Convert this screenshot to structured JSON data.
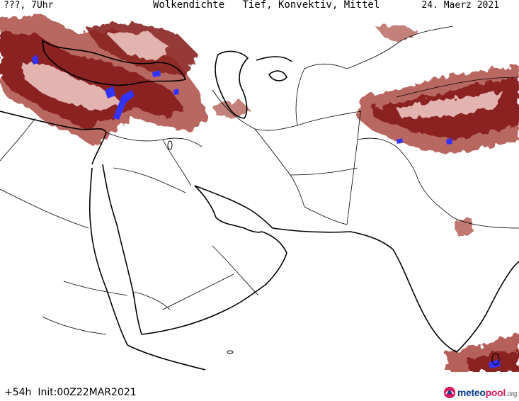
{
  "header": {
    "left": "???, 7Uhr",
    "center": "Wolkendichte   Tief, Konvektiv, Mittel",
    "right": "24. Maerz 2021"
  },
  "footer": {
    "run": "+54h  Init:00Z22MAR2021",
    "logo_part1": "meteo",
    "logo_part2": "pool",
    "logo_part3": ".org"
  },
  "colors": {
    "cloud_dark": "#8b2323",
    "cloud_mid": "#b5605a",
    "cloud_light": "#e3b3b0",
    "convective": "#3333ff",
    "border": "#000000",
    "logo_blue": "#0b3d91",
    "logo_pink": "#d81b60"
  }
}
